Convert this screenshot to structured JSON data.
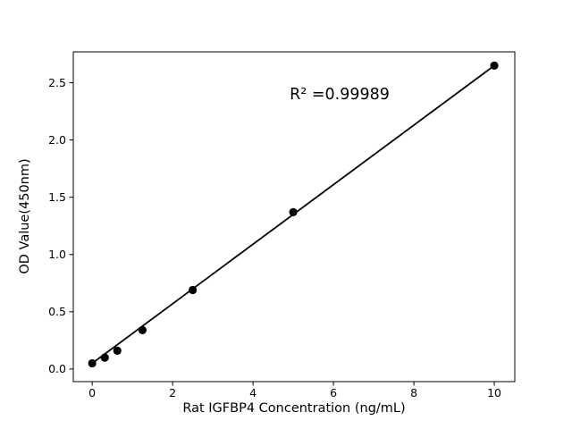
{
  "chart_data": {
    "type": "scatter",
    "title": "",
    "xlabel": "Rat IGFBP4 Concentration (ng/mL)",
    "ylabel": "OD Value(450nm)",
    "annotation": "R² =0.99989",
    "r_squared": 0.99989,
    "x": [
      0,
      0.3125,
      0.625,
      1.25,
      2.5,
      5,
      10
    ],
    "y": [
      0.05,
      0.1,
      0.16,
      0.34,
      0.69,
      1.37,
      2.65
    ],
    "trendline": {
      "x1": 0,
      "y1": 0.05,
      "x2": 10,
      "y2": 2.65
    },
    "xticks": [
      0,
      2,
      4,
      6,
      8,
      10
    ],
    "xtick_labels": [
      "0",
      "2",
      "4",
      "6",
      "8",
      "10"
    ],
    "yticks": [
      0,
      0.5,
      1.0,
      1.5,
      2.0,
      2.5
    ],
    "ytick_labels": [
      "0.0",
      "0.5",
      "1.0",
      "1.5",
      "2.0",
      "2.5"
    ],
    "xlim": [
      -0.47,
      10.51
    ],
    "ylim": [
      -0.11,
      2.77
    ],
    "grid": false,
    "legend": null,
    "colors": {
      "marker": "#000000",
      "line": "#000000",
      "axis": "#000000",
      "background": "#ffffff"
    }
  }
}
